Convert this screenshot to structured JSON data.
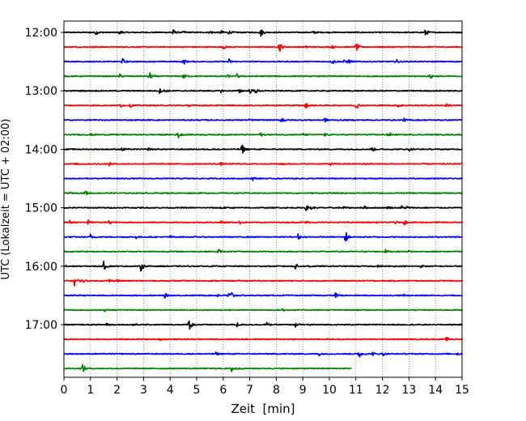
{
  "chart_data": {
    "type": "line",
    "subtype": "helicorder",
    "xlabel": "Zeit  [min]",
    "ylabel": "UTC (Lokalzeit = UTC + 02:00)",
    "xlim": [
      0,
      15
    ],
    "x_ticks": [
      "0",
      "1",
      "2",
      "3",
      "4",
      "5",
      "6",
      "7",
      "8",
      "9",
      "10",
      "11",
      "12",
      "13",
      "14",
      "15"
    ],
    "vertical_grid": "dotted, every 1 min",
    "trace_interval_min": 15,
    "trace_count": 24,
    "first_trace_time": "12:00",
    "y_tick_labels": [
      "12:00",
      "13:00",
      "14:00",
      "15:00",
      "16:00",
      "17:00"
    ],
    "trace_colors": [
      "#000000",
      "#ff0000",
      "#0000ff",
      "#008000"
    ],
    "last_trace_end_min": 10.85,
    "events": [
      [
        [
          1.2,
          0.5
        ],
        [
          2.1,
          0.4
        ],
        [
          4.1,
          0.6
        ],
        [
          4.5,
          0.3
        ],
        [
          5.5,
          0.5
        ],
        [
          5.9,
          0.5
        ],
        [
          6.2,
          0.4
        ],
        [
          7.4,
          1.0
        ],
        [
          9.4,
          0.3
        ],
        [
          13.6,
          0.9
        ]
      ],
      [
        [
          1.1,
          0.2
        ],
        [
          6.0,
          0.4
        ],
        [
          8.1,
          1.3
        ],
        [
          9.1,
          0.2
        ],
        [
          10.1,
          0.3
        ],
        [
          11.0,
          1.0
        ]
      ],
      [
        [
          2.2,
          0.6
        ],
        [
          4.5,
          0.6
        ],
        [
          6.2,
          0.6
        ],
        [
          10.1,
          0.6
        ],
        [
          10.5,
          0.4
        ],
        [
          10.7,
          0.5
        ],
        [
          12.5,
          0.5
        ]
      ],
      [
        [
          2.1,
          0.4
        ],
        [
          3.2,
          1.0
        ],
        [
          4.5,
          0.6
        ],
        [
          6.1,
          0.5
        ],
        [
          6.5,
          0.5
        ],
        [
          13.8,
          0.6
        ]
      ],
      [
        [
          3.6,
          0.4
        ],
        [
          3.8,
          0.3
        ],
        [
          5.9,
          0.3
        ],
        [
          6.6,
          0.5
        ],
        [
          7.0,
          0.5
        ],
        [
          7.2,
          0.6
        ]
      ],
      [
        [
          2.1,
          0.4
        ],
        [
          2.5,
          0.3
        ],
        [
          4.7,
          0.3
        ],
        [
          9.1,
          0.6
        ],
        [
          11.0,
          0.8
        ],
        [
          12.6,
          0.4
        ],
        [
          14.4,
          0.3
        ]
      ],
      [
        [
          7.0,
          0.3
        ],
        [
          8.2,
          0.7
        ],
        [
          9.8,
          0.5
        ],
        [
          12.8,
          0.3
        ]
      ],
      [
        [
          1.0,
          0.2
        ],
        [
          4.3,
          0.8
        ],
        [
          7.4,
          0.4
        ],
        [
          9.0,
          0.3
        ],
        [
          9.8,
          0.3
        ],
        [
          12.2,
          0.6
        ]
      ],
      [
        [
          2.2,
          0.5
        ],
        [
          3.2,
          0.3
        ],
        [
          6.7,
          1.1
        ],
        [
          11.6,
          0.5
        ],
        [
          13.0,
          0.3
        ]
      ],
      [
        [
          0.5,
          0.2
        ],
        [
          1.7,
          0.3
        ],
        [
          5.9,
          0.3
        ],
        [
          8.2,
          0.2
        ],
        [
          10.0,
          0.3
        ],
        [
          11.3,
          0.2
        ]
      ],
      [
        [
          7.1,
          0.4
        ]
      ],
      [
        [
          0.2,
          0.2
        ],
        [
          0.8,
          0.5
        ]
      ],
      [
        [
          5.9,
          0.4
        ],
        [
          9.1,
          0.6
        ],
        [
          9.3,
          0.4
        ],
        [
          10.5,
          0.4
        ],
        [
          11.3,
          0.3
        ],
        [
          12.2,
          0.3
        ],
        [
          12.7,
          0.4
        ],
        [
          12.9,
          0.3
        ]
      ],
      [
        [
          0.2,
          0.4
        ],
        [
          0.9,
          0.5
        ],
        [
          1.7,
          0.3
        ],
        [
          5.9,
          0.4
        ],
        [
          6.6,
          0.4
        ],
        [
          9.1,
          0.3
        ],
        [
          12.4,
          0.8
        ],
        [
          12.8,
          0.6
        ]
      ],
      [
        [
          1.0,
          0.5
        ],
        [
          2.7,
          0.3
        ],
        [
          4.0,
          0.2
        ],
        [
          8.8,
          0.7
        ],
        [
          10.6,
          1.4
        ]
      ],
      [
        [
          5.8,
          0.6
        ],
        [
          12.1,
          0.4
        ],
        [
          13.0,
          0.3
        ]
      ],
      [
        [
          0.1,
          0.3
        ],
        [
          1.5,
          0.8
        ],
        [
          2.9,
          0.9
        ],
        [
          8.7,
          0.7
        ],
        [
          9.2,
          0.5
        ],
        [
          11.8,
          0.2
        ],
        [
          13.4,
          0.3
        ]
      ],
      [
        [
          0.4,
          1.2
        ],
        [
          0.7,
          0.5
        ],
        [
          1.7,
          0.3
        ],
        [
          2.0,
          0.3
        ]
      ],
      [
        [
          3.8,
          0.4
        ],
        [
          5.8,
          0.4
        ],
        [
          6.2,
          0.6
        ],
        [
          6.3,
          0.6
        ],
        [
          10.2,
          0.7
        ],
        [
          12.8,
          0.2
        ]
      ],
      [
        [
          1.5,
          0.3
        ],
        [
          8.2,
          0.4
        ]
      ],
      [
        [
          1.6,
          0.5
        ],
        [
          2.6,
          0.3
        ],
        [
          4.7,
          1.6
        ],
        [
          6.5,
          0.5
        ],
        [
          7.6,
          0.6
        ],
        [
          8.7,
          0.5
        ],
        [
          9.3,
          0.2
        ]
      ],
      [
        [
          3.6,
          0.3
        ],
        [
          14.4,
          0.4
        ]
      ],
      [
        [
          5.7,
          0.3
        ],
        [
          9.6,
          0.4
        ],
        [
          11.1,
          1.0
        ],
        [
          11.6,
          0.4
        ],
        [
          12.0,
          0.4
        ],
        [
          14.8,
          0.3
        ]
      ],
      [
        [
          0.7,
          0.9
        ],
        [
          6.3,
          0.9
        ],
        [
          6.4,
          0.4
        ]
      ]
    ]
  }
}
